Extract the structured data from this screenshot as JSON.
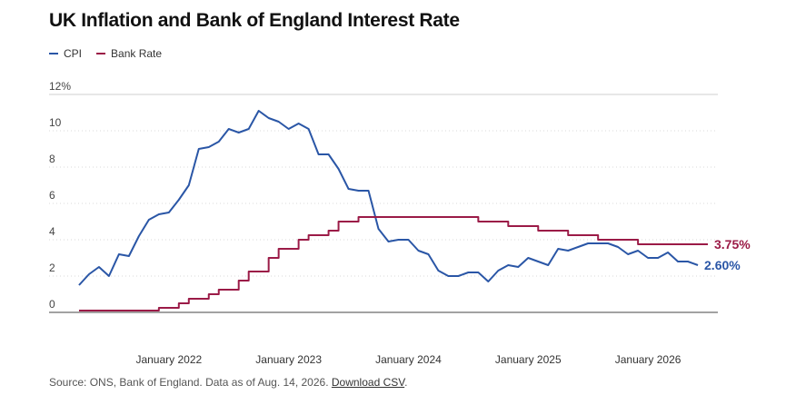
{
  "title": "UK Inflation and Bank of England Interest Rate",
  "legend": [
    {
      "label": "CPI",
      "color": "#2a56a6"
    },
    {
      "label": "Bank Rate",
      "color": "#9b1b47"
    }
  ],
  "source": {
    "text": "Source: ONS, Bank of England. Data as of Aug. 14, 2026. ",
    "link_label": "Download CSV",
    "end": "."
  },
  "chart_data": {
    "type": "line",
    "xlabel": "",
    "ylabel": "",
    "ylim": [
      0,
      12
    ],
    "yticks": [
      {
        "value": 0,
        "label": "0"
      },
      {
        "value": 2,
        "label": "2"
      },
      {
        "value": 4,
        "label": "4"
      },
      {
        "value": 6,
        "label": "6"
      },
      {
        "value": 8,
        "label": "8"
      },
      {
        "value": 10,
        "label": "10"
      },
      {
        "value": 12,
        "label": "12%"
      }
    ],
    "xlim": [
      "2021-01",
      "2026-08"
    ],
    "xticks": [
      {
        "value": "2022-01",
        "label": "January 2022"
      },
      {
        "value": "2023-01",
        "label": "January 2023"
      },
      {
        "value": "2024-01",
        "label": "January 2024"
      },
      {
        "value": "2025-01",
        "label": "January 2025"
      },
      {
        "value": "2026-01",
        "label": "January 2026"
      }
    ],
    "grid": true,
    "legend_position": "top-left",
    "series": [
      {
        "name": "CPI",
        "color": "#2a56a6",
        "step": false,
        "end_label": "2.60%",
        "points": [
          [
            "2021-04",
            1.5
          ],
          [
            "2021-05",
            2.1
          ],
          [
            "2021-06",
            2.5
          ],
          [
            "2021-07",
            2.0
          ],
          [
            "2021-08",
            3.2
          ],
          [
            "2021-09",
            3.1
          ],
          [
            "2021-10",
            4.2
          ],
          [
            "2021-11",
            5.1
          ],
          [
            "2021-12",
            5.4
          ],
          [
            "2022-01",
            5.5
          ],
          [
            "2022-02",
            6.2
          ],
          [
            "2022-03",
            7.0
          ],
          [
            "2022-04",
            9.0
          ],
          [
            "2022-05",
            9.1
          ],
          [
            "2022-06",
            9.4
          ],
          [
            "2022-07",
            10.1
          ],
          [
            "2022-08",
            9.9
          ],
          [
            "2022-09",
            10.1
          ],
          [
            "2022-10",
            11.1
          ],
          [
            "2022-11",
            10.7
          ],
          [
            "2022-12",
            10.5
          ],
          [
            "2023-01",
            10.1
          ],
          [
            "2023-02",
            10.4
          ],
          [
            "2023-03",
            10.1
          ],
          [
            "2023-04",
            8.7
          ],
          [
            "2023-05",
            8.7
          ],
          [
            "2023-06",
            7.9
          ],
          [
            "2023-07",
            6.8
          ],
          [
            "2023-08",
            6.7
          ],
          [
            "2023-09",
            6.7
          ],
          [
            "2023-10",
            4.6
          ],
          [
            "2023-11",
            3.9
          ],
          [
            "2023-12",
            4.0
          ],
          [
            "2024-01",
            4.0
          ],
          [
            "2024-02",
            3.4
          ],
          [
            "2024-03",
            3.2
          ],
          [
            "2024-04",
            2.3
          ],
          [
            "2024-05",
            2.0
          ],
          [
            "2024-06",
            2.0
          ],
          [
            "2024-07",
            2.2
          ],
          [
            "2024-08",
            2.2
          ],
          [
            "2024-09",
            1.7
          ],
          [
            "2024-10",
            2.3
          ],
          [
            "2024-11",
            2.6
          ],
          [
            "2024-12",
            2.5
          ],
          [
            "2025-01",
            3.0
          ],
          [
            "2025-02",
            2.8
          ],
          [
            "2025-03",
            2.6
          ],
          [
            "2025-04",
            3.5
          ],
          [
            "2025-05",
            3.4
          ],
          [
            "2025-06",
            3.6
          ],
          [
            "2025-07",
            3.8
          ],
          [
            "2025-08",
            3.8
          ],
          [
            "2025-09",
            3.8
          ],
          [
            "2025-10",
            3.6
          ],
          [
            "2025-11",
            3.2
          ],
          [
            "2025-12",
            3.4
          ],
          [
            "2026-01",
            3.0
          ],
          [
            "2026-02",
            3.0
          ],
          [
            "2026-03",
            3.3
          ],
          [
            "2026-04",
            2.8
          ],
          [
            "2026-05",
            2.8
          ],
          [
            "2026-06",
            2.6
          ]
        ]
      },
      {
        "name": "Bank Rate",
        "color": "#9b1b47",
        "step": true,
        "end_label": "3.75%",
        "end_date": "2026-07",
        "points": [
          [
            "2021-04",
            0.1
          ],
          [
            "2021-12",
            0.25
          ],
          [
            "2022-02",
            0.5
          ],
          [
            "2022-03",
            0.75
          ],
          [
            "2022-05",
            1.0
          ],
          [
            "2022-06",
            1.25
          ],
          [
            "2022-08",
            1.75
          ],
          [
            "2022-09",
            2.25
          ],
          [
            "2022-11",
            3.0
          ],
          [
            "2022-12",
            3.5
          ],
          [
            "2023-02",
            4.0
          ],
          [
            "2023-03",
            4.25
          ],
          [
            "2023-05",
            4.5
          ],
          [
            "2023-06",
            5.0
          ],
          [
            "2023-08",
            5.25
          ],
          [
            "2024-08",
            5.0
          ],
          [
            "2024-11",
            4.75
          ],
          [
            "2025-02",
            4.5
          ],
          [
            "2025-05",
            4.25
          ],
          [
            "2025-08",
            4.0
          ],
          [
            "2025-12",
            3.75
          ]
        ]
      }
    ]
  }
}
